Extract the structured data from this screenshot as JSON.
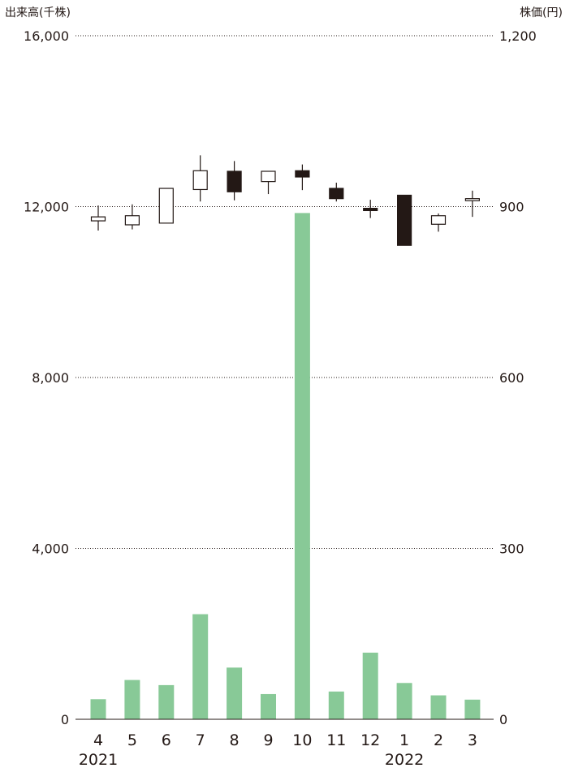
{
  "chart_data": {
    "type": "bar+candlestick",
    "left_axis_title": "出来高(千株)",
    "right_axis_title": "株価(円)",
    "left_ticks": [
      {
        "value": 16000,
        "label": "16,000"
      },
      {
        "value": 12000,
        "label": "12,000"
      },
      {
        "value": 8000,
        "label": "8,000"
      },
      {
        "value": 4000,
        "label": "4,000"
      },
      {
        "value": 0,
        "label": "0"
      }
    ],
    "right_ticks": [
      {
        "value": 1200,
        "label": "1,200"
      },
      {
        "value": 900,
        "label": "900"
      },
      {
        "value": 600,
        "label": "600"
      },
      {
        "value": 300,
        "label": "300"
      },
      {
        "value": 0,
        "label": "0"
      }
    ],
    "ylim_volume": [
      0,
      16000
    ],
    "ylim_price": [
      0,
      1200
    ],
    "grid": "dotted horizontal",
    "categories": [
      "4",
      "5",
      "6",
      "7",
      "8",
      "9",
      "10",
      "11",
      "12",
      "1",
      "2",
      "3"
    ],
    "year_labels": [
      {
        "label": "2021",
        "category_index": 0
      },
      {
        "label": "2022",
        "category_index": 9
      }
    ],
    "volume": [
      470,
      920,
      800,
      2460,
      1210,
      590,
      11850,
      650,
      1560,
      850,
      560,
      460
    ],
    "candles": [
      {
        "open": 875,
        "close": 882,
        "high": 902,
        "low": 858
      },
      {
        "open": 868,
        "close": 884,
        "high": 904,
        "low": 860
      },
      {
        "open": 871,
        "close": 932,
        "high": 932,
        "low": 871
      },
      {
        "open": 930,
        "close": 963,
        "high": 990,
        "low": 909
      },
      {
        "open": 962,
        "close": 926,
        "high": 980,
        "low": 911
      },
      {
        "open": 944,
        "close": 962,
        "high": 962,
        "low": 922
      },
      {
        "open": 963,
        "close": 952,
        "high": 974,
        "low": 929
      },
      {
        "open": 932,
        "close": 914,
        "high": 942,
        "low": 909
      },
      {
        "open": 897,
        "close": 893,
        "high": 912,
        "low": 880
      },
      {
        "open": 920,
        "close": 832,
        "high": 920,
        "low": 832
      },
      {
        "open": 869,
        "close": 884,
        "high": 888,
        "low": 856
      },
      {
        "open": 911,
        "close": 914,
        "high": 928,
        "low": 882
      }
    ],
    "colors": {
      "volume_bar": "#88c997",
      "candle_up_fill": "#ffffff",
      "candle_down_fill": "#231815",
      "candle_stroke": "#231815",
      "grid": "#231815",
      "text": "#231815"
    }
  }
}
